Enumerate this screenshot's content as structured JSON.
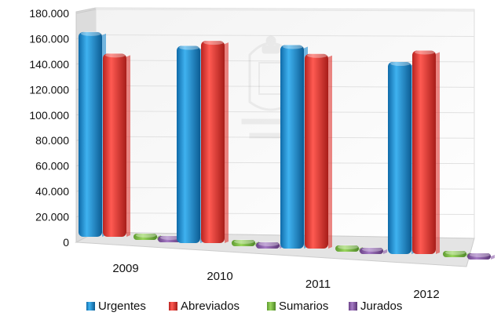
{
  "chart_data": {
    "type": "bar",
    "title": "",
    "xlabel": "",
    "ylabel": "",
    "categories": [
      "2009",
      "2010",
      "2011",
      "2012"
    ],
    "y_ticks": [
      "0",
      "20.000",
      "40.000",
      "60.000",
      "80.000",
      "100.000",
      "120.000",
      "140.000",
      "160.000",
      "180.000"
    ],
    "ylim": [
      0,
      180000
    ],
    "grid": true,
    "legend_position": "bottom",
    "series": [
      {
        "name": "Urgentes",
        "color": "#1a8ad0",
        "values": [
          161000,
          155000,
          160000,
          151000
        ]
      },
      {
        "name": "Abreviados",
        "color": "#e03530",
        "values": [
          144000,
          159000,
          153000,
          160000
        ]
      },
      {
        "name": "Sumarios",
        "color": "#7bc142",
        "values": [
          3000,
          3000,
          3000,
          3000
        ]
      },
      {
        "name": "Jurados",
        "color": "#8a5aa8",
        "values": [
          800,
          800,
          800,
          800
        ]
      }
    ]
  }
}
